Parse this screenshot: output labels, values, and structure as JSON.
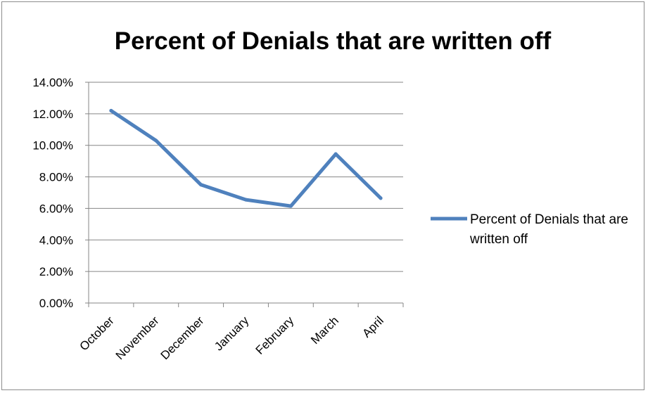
{
  "chart_data": {
    "type": "line",
    "title": "Percent of Denials that are written off",
    "categories": [
      "October",
      "November",
      "December",
      "January",
      "February",
      "March",
      "April"
    ],
    "series": [
      {
        "name": "Percent of Denials that are written off",
        "values": [
          12.2,
          10.3,
          7.5,
          6.55,
          6.15,
          9.45,
          6.65
        ],
        "color": "#4f81bd"
      }
    ],
    "y_ticks": [
      "0.00%",
      "2.00%",
      "4.00%",
      "6.00%",
      "8.00%",
      "10.00%",
      "12.00%",
      "14.00%"
    ],
    "ylim": [
      0,
      14
    ],
    "ytick_step": 2,
    "grid": true,
    "legend_position": "right"
  }
}
